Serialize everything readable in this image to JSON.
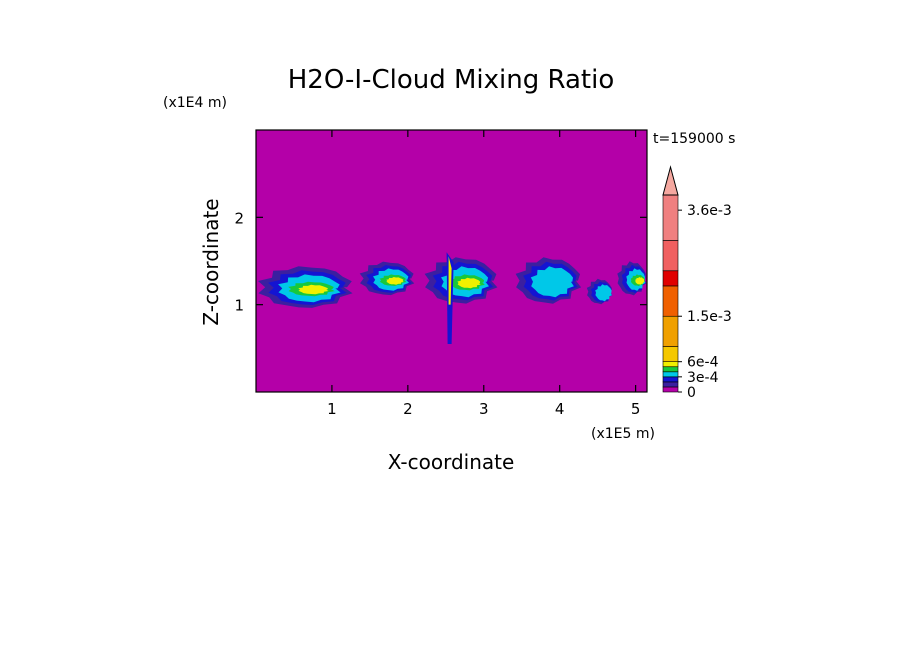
{
  "chart_data": {
    "type": "heatmap",
    "title": "H2O-I-Cloud Mixing Ratio",
    "xlabel": "X-coordinate",
    "ylabel": "Z-coordinate",
    "x_scale_label": "(x1E5 m)",
    "y_scale_label": "(x1E4 m)",
    "time_label": "t=159000 s",
    "xlim": [
      0,
      5.15
    ],
    "ylim": [
      0,
      3.0
    ],
    "x_ticks": [
      "1",
      "2",
      "3",
      "4",
      "5"
    ],
    "x_tick_values": [
      1,
      2,
      3,
      4,
      5
    ],
    "y_ticks": [
      "1",
      "2"
    ],
    "y_tick_values": [
      1,
      2
    ],
    "background_color": "#b400a8",
    "colorbar": {
      "min": 0,
      "max": 0.0039,
      "labels": [
        {
          "text": "3.6e-3",
          "value": 0.0036
        },
        {
          "text": "1.5e-3",
          "value": 0.0015
        },
        {
          "text": "6e-4",
          "value": 0.0006
        },
        {
          "text": "3e-4",
          "value": 0.0003
        },
        {
          "text": "0",
          "value": 0.0
        }
      ],
      "bands": [
        {
          "from": 0.0,
          "to": 0.0001,
          "color": "#b400a8"
        },
        {
          "from": 0.0001,
          "to": 0.0002,
          "color": "#3b1fa0"
        },
        {
          "from": 0.0002,
          "to": 0.0003,
          "color": "#1414d2"
        },
        {
          "from": 0.0003,
          "to": 0.0004,
          "color": "#00c8e8"
        },
        {
          "from": 0.0004,
          "to": 0.0005,
          "color": "#18c83c"
        },
        {
          "from": 0.0005,
          "to": 0.0006,
          "color": "#f0f000"
        },
        {
          "from": 0.0006,
          "to": 0.0009,
          "color": "#f5c800"
        },
        {
          "from": 0.0009,
          "to": 0.0015,
          "color": "#f0a000"
        },
        {
          "from": 0.0015,
          "to": 0.0021,
          "color": "#f06000"
        },
        {
          "from": 0.0021,
          "to": 0.0024,
          "color": "#e00000"
        },
        {
          "from": 0.0024,
          "to": 0.003,
          "color": "#f06060"
        },
        {
          "from": 0.003,
          "to": 0.0039,
          "color": "#f08080"
        }
      ],
      "overflow_color": "#f5a8a0"
    },
    "cloud_layer": {
      "z_range": [
        0.95,
        1.45
      ],
      "cells": [
        {
          "x": [
            0.0,
            1.3
          ],
          "z": [
            0.95,
            1.45
          ],
          "max_level": "6e-4"
        },
        {
          "x": [
            1.35,
            2.1
          ],
          "z": [
            1.1,
            1.5
          ],
          "max_level": "6e-4"
        },
        {
          "x": [
            2.2,
            3.2
          ],
          "z": [
            1.0,
            1.55
          ],
          "max_level": "6e-4"
        },
        {
          "x": [
            3.4,
            4.3
          ],
          "z": [
            1.0,
            1.55
          ],
          "max_level": "3e-4"
        },
        {
          "x": [
            4.35,
            4.7
          ],
          "z": [
            1.0,
            1.3
          ],
          "max_level": "3e-4"
        },
        {
          "x": [
            4.75,
            5.15
          ],
          "z": [
            1.1,
            1.5
          ],
          "max_level": "6e-4"
        }
      ],
      "updraft": {
        "x": 2.55,
        "z": [
          0.55,
          1.6
        ]
      }
    }
  }
}
